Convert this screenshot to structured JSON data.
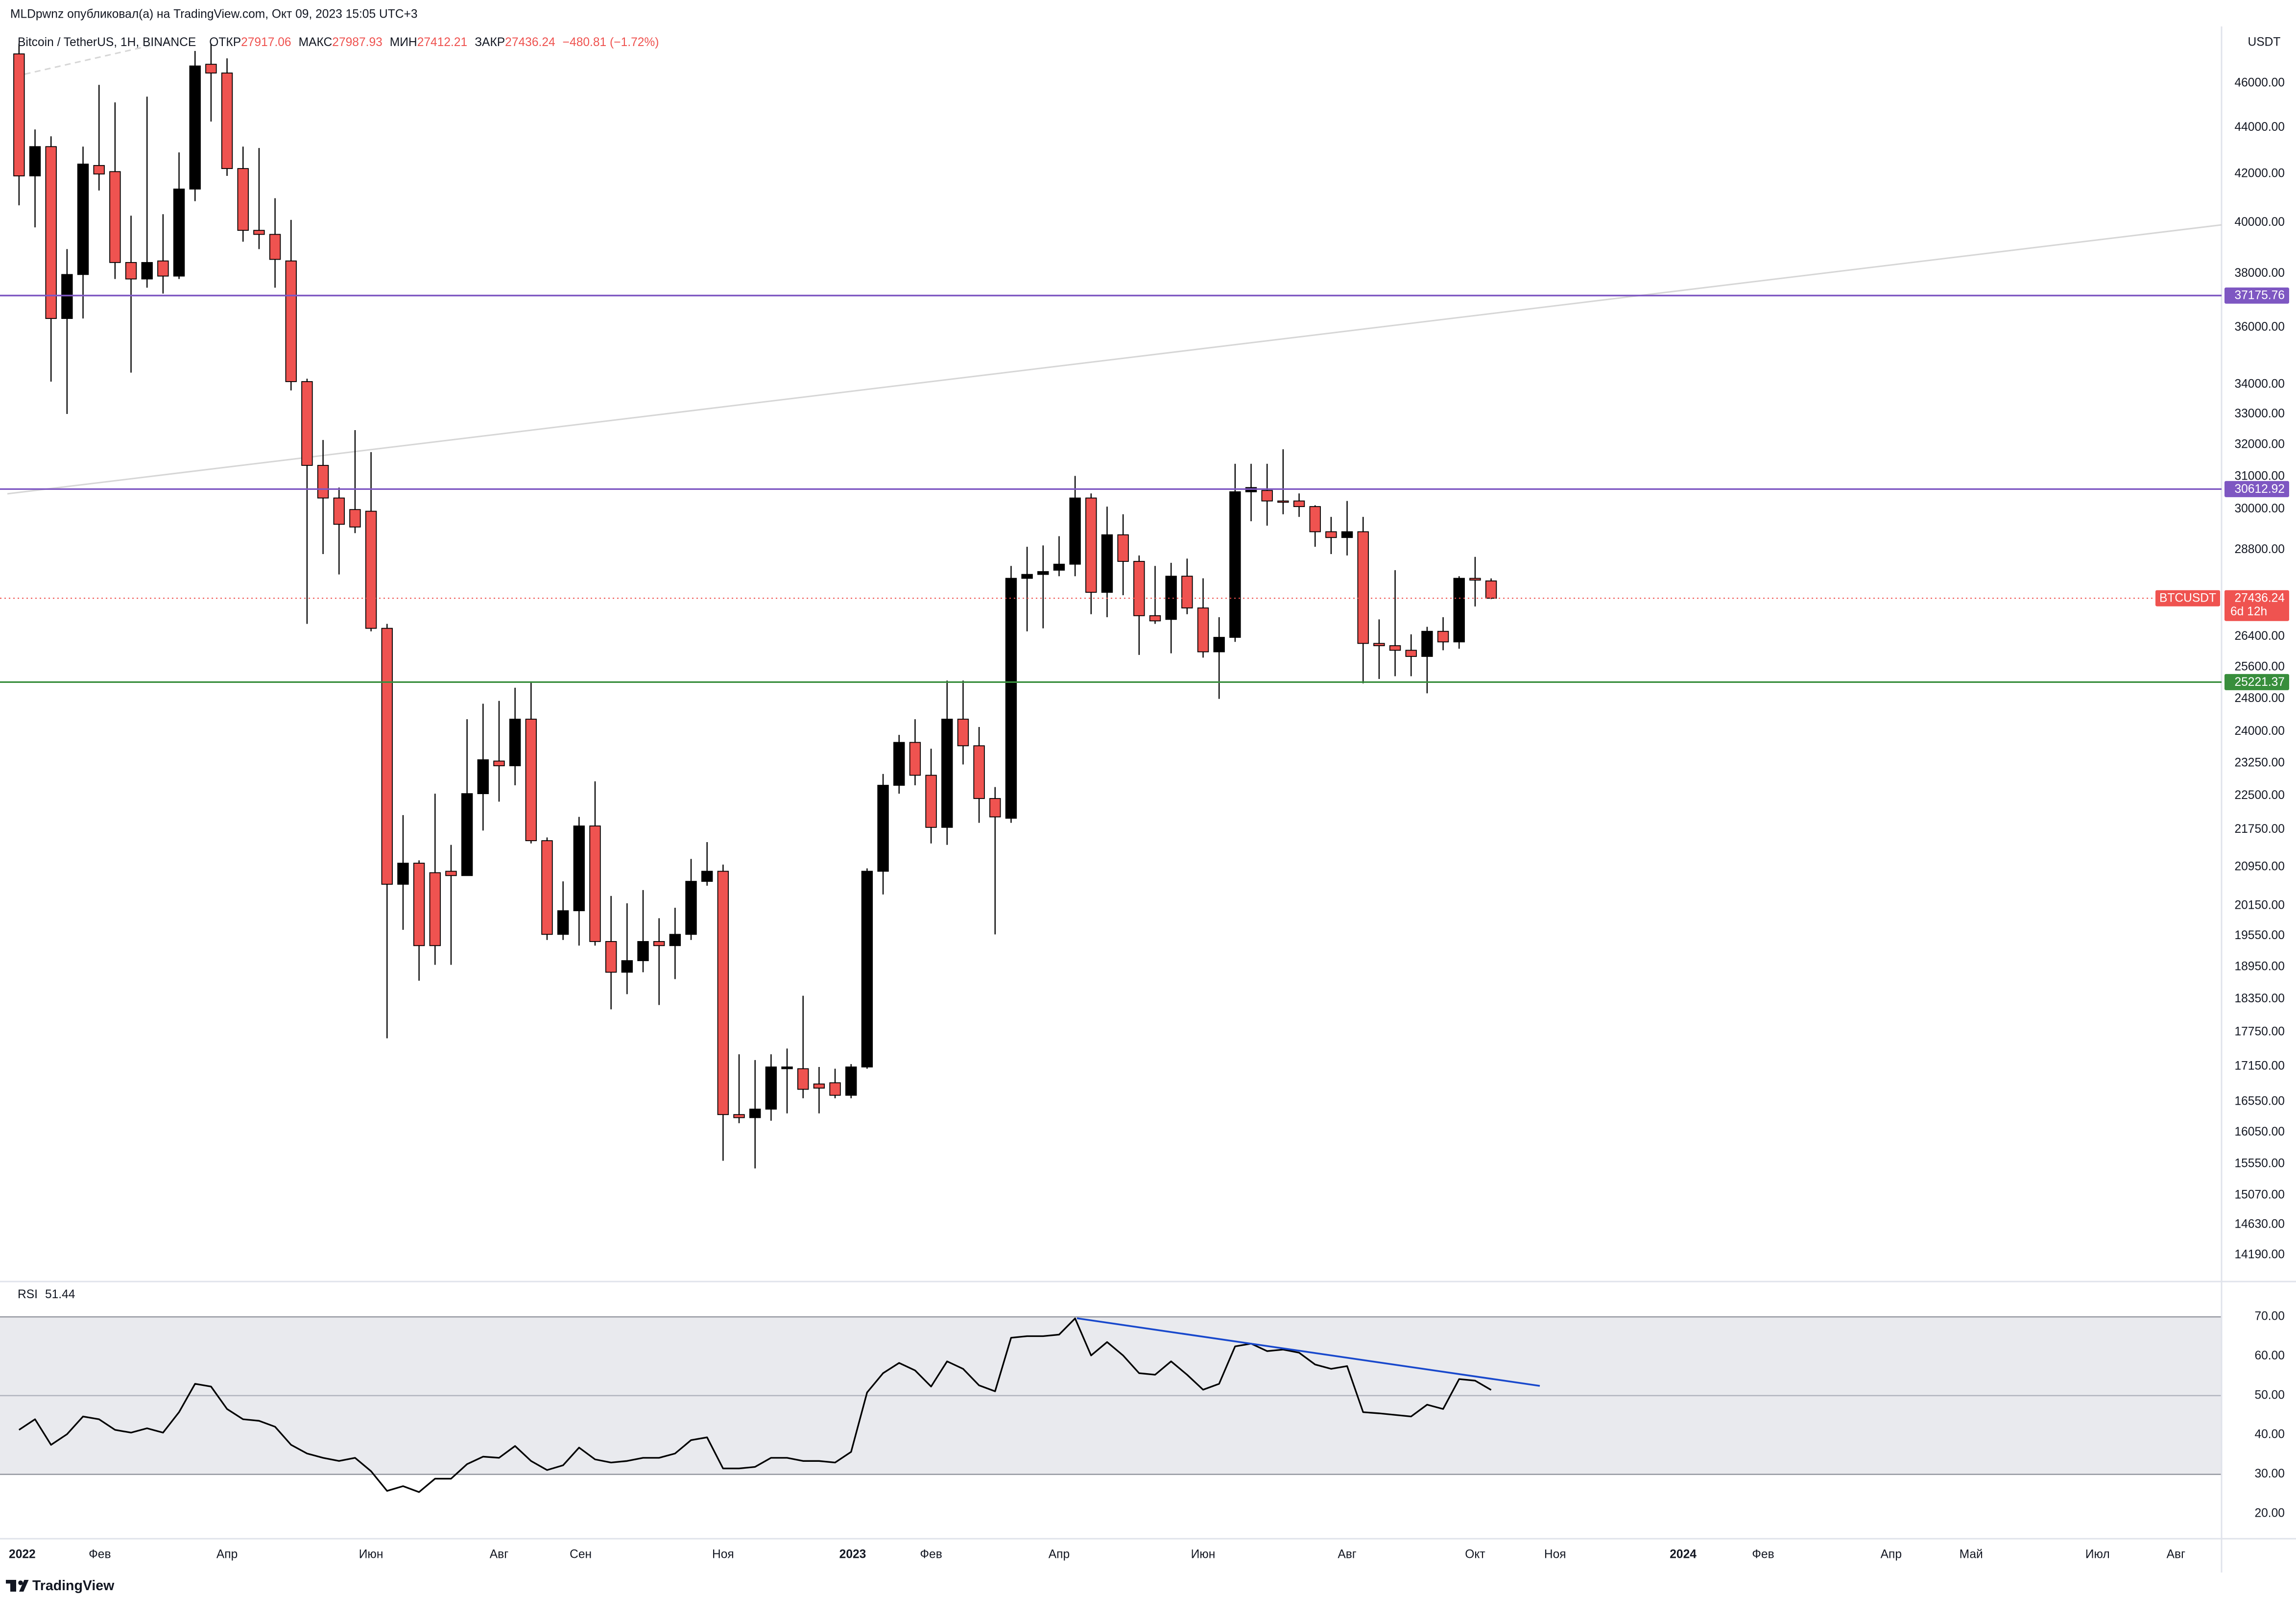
{
  "header": {
    "author_line": "MLDpwnz опубликовал(а) на TradingView.com, Окт 09, 2023 15:05 UTC+3"
  },
  "footer": {
    "brand": "TradingView"
  },
  "chart_data": [
    {
      "type": "candlestick",
      "title": "Bitcoin / TetherUS, 1H, BINANCE",
      "legend_labels": {
        "open": "ОТКР",
        "high": "МАКС",
        "low": "МИН",
        "close": "ЗАКР"
      },
      "change": "−480.81 (−1.72%)",
      "y_axis_unit": "USDT",
      "up_color": "#000000",
      "down_color": "#ef5350",
      "log_scale": true,
      "xlim": [
        -0.73,
        137.65
      ],
      "xticks": [
        {
          "value": 0.2,
          "label": "2022"
        },
        {
          "value": 5.05,
          "label": "Фев"
        },
        {
          "value": 13.0,
          "label": "Апр"
        },
        {
          "value": 22.0,
          "label": "Июн"
        },
        {
          "value": 30.0,
          "label": "Авг"
        },
        {
          "value": 35.1,
          "label": "Сен"
        },
        {
          "value": 44.0,
          "label": "Ноя"
        },
        {
          "value": 52.1,
          "label": "2023"
        },
        {
          "value": 57.0,
          "label": "Фев"
        },
        {
          "value": 65.0,
          "label": "Апр"
        },
        {
          "value": 74.0,
          "label": "Июн"
        },
        {
          "value": 83.0,
          "label": "Авг"
        },
        {
          "value": 91.0,
          "label": "Окт"
        },
        {
          "value": 96.0,
          "label": "Ноя"
        },
        {
          "value": 104.0,
          "label": "2024"
        },
        {
          "value": 109.0,
          "label": "Фев"
        },
        {
          "value": 117.0,
          "label": "Апр"
        },
        {
          "value": 122.0,
          "label": "Май"
        },
        {
          "value": 129.9,
          "label": "Июл"
        },
        {
          "value": 134.8,
          "label": "Авг"
        }
      ],
      "ylim": [
        13860,
        48560
      ],
      "yticks": [
        {
          "value": 46000,
          "label": "46000.00"
        },
        {
          "value": 44000,
          "label": "44000.00"
        },
        {
          "value": 42000,
          "label": "42000.00"
        },
        {
          "value": 40000,
          "label": "40000.00"
        },
        {
          "value": 38000,
          "label": "38000.00"
        },
        {
          "value": 36000,
          "label": "36000.00"
        },
        {
          "value": 34000,
          "label": "34000.00"
        },
        {
          "value": 33000,
          "label": "33000.00"
        },
        {
          "value": 32000,
          "label": "32000.00"
        },
        {
          "value": 31000,
          "label": "31000.00"
        },
        {
          "value": 30000,
          "label": "30000.00"
        },
        {
          "value": 28800,
          "label": "28800.00"
        },
        {
          "value": 26400,
          "label": "26400.00"
        },
        {
          "value": 25600,
          "label": "25600.00"
        },
        {
          "value": 24800,
          "label": "24800.00"
        },
        {
          "value": 24000,
          "label": "24000.00"
        },
        {
          "value": 23250,
          "label": "23250.00"
        },
        {
          "value": 22500,
          "label": "22500.00"
        },
        {
          "value": 21750,
          "label": "21750.00"
        },
        {
          "value": 20950,
          "label": "20950.00"
        },
        {
          "value": 20150,
          "label": "20150.00"
        },
        {
          "value": 19550,
          "label": "19550.00"
        },
        {
          "value": 18950,
          "label": "18950.00"
        },
        {
          "value": 18350,
          "label": "18350.00"
        },
        {
          "value": 17750,
          "label": "17750.00"
        },
        {
          "value": 17150,
          "label": "17150.00"
        },
        {
          "value": 16550,
          "label": "16550.00"
        },
        {
          "value": 16050,
          "label": "16050.00"
        },
        {
          "value": 15550,
          "label": "15550.00"
        },
        {
          "value": 15070,
          "label": "15070.00"
        },
        {
          "value": 14630,
          "label": "14630.00"
        },
        {
          "value": 14190,
          "label": "14190.00"
        }
      ],
      "open": [
        47380,
        41920,
        43170,
        36330,
        37970,
        42360,
        42100,
        38430,
        37800,
        38490,
        37910,
        41370,
        46890,
        46480,
        42230,
        39690,
        39530,
        38490,
        34100,
        31350,
        30340,
        29990,
        29940,
        26620,
        20590,
        21030,
        20830,
        20860,
        20770,
        22550,
        23300,
        23190,
        24300,
        21510,
        19580,
        20050,
        21830,
        19440,
        18850,
        19070,
        19440,
        19360,
        19580,
        20650,
        20860,
        16340,
        16290,
        16430,
        17110,
        17110,
        16850,
        16870,
        16660,
        17140,
        20860,
        22740,
        23740,
        22970,
        21800,
        24300,
        23660,
        22440,
        22000,
        27990,
        28100,
        28220,
        28390,
        30340,
        27600,
        29240,
        28470,
        26960,
        26860,
        28050,
        27170,
        26000,
        26380,
        30530,
        30570,
        30250,
        30250,
        30080,
        29330,
        29160,
        29330,
        26220,
        26160,
        26040,
        25880,
        26540,
        26260,
        27990,
        27917.06
      ],
      "high": [
        47870,
        43920,
        43620,
        38950,
        43170,
        45930,
        45130,
        40280,
        45390,
        40340,
        42920,
        47520,
        47870,
        47170,
        43170,
        43110,
        40990,
        40110,
        34200,
        32160,
        30660,
        32480,
        31770,
        26740,
        22070,
        21090,
        22550,
        21420,
        24300,
        24680,
        24750,
        25080,
        25220,
        21580,
        20650,
        22030,
        22830,
        20350,
        20200,
        20470,
        19900,
        20110,
        21120,
        21480,
        21000,
        17360,
        17260,
        17360,
        17460,
        18410,
        17140,
        17110,
        17190,
        20920,
        23000,
        23920,
        24300,
        23590,
        25260,
        25260,
        24110,
        22700,
        28340,
        28890,
        28930,
        29200,
        31020,
        30480,
        30080,
        29850,
        28640,
        28340,
        28430,
        28550,
        27990,
        26920,
        31400,
        31400,
        31400,
        31860,
        30480,
        30120,
        29770,
        30250,
        29770,
        26860,
        28220,
        26460,
        26660,
        26920,
        28050,
        28600,
        27987.93
      ],
      "low": [
        40700,
        39810,
        34100,
        33010,
        36330,
        41310,
        37800,
        34410,
        37470,
        37250,
        37800,
        40870,
        44270,
        41920,
        39240,
        38950,
        37470,
        33800,
        26740,
        28680,
        28100,
        29290,
        26540,
        17640,
        19670,
        18690,
        18990,
        18990,
        20770,
        21730,
        22370,
        22740,
        21450,
        19470,
        19470,
        19360,
        19360,
        18160,
        18440,
        18850,
        18240,
        18720,
        19470,
        20560,
        15600,
        16200,
        15480,
        16240,
        16360,
        16610,
        16360,
        16610,
        16610,
        17110,
        20380,
        22550,
        22740,
        21450,
        21420,
        23220,
        21900,
        19580,
        21900,
        26540,
        26620,
        28050,
        28050,
        27000,
        26920,
        27520,
        25920,
        26740,
        25960,
        27000,
        25850,
        24800,
        26260,
        29640,
        29510,
        29850,
        29770,
        28890,
        28680,
        28640,
        25190,
        25300,
        25370,
        25370,
        24940,
        26040,
        26080,
        27210,
        27412.21
      ],
      "close": [
        41920,
        43170,
        36330,
        37970,
        42420,
        42000,
        38430,
        37800,
        38430,
        37910,
        41370,
        46810,
        46480,
        42230,
        39690,
        39530,
        38550,
        34100,
        31350,
        30340,
        29550,
        29470,
        26620,
        20590,
        21030,
        19360,
        19360,
        20770,
        22550,
        23330,
        23190,
        24300,
        21510,
        19580,
        20050,
        21830,
        19440,
        18850,
        19070,
        19440,
        19360,
        19580,
        20650,
        20860,
        16340,
        16290,
        16430,
        17140,
        17140,
        16760,
        16780,
        16660,
        17140,
        20860,
        22740,
        23740,
        22970,
        21800,
        24300,
        23660,
        22440,
        22030,
        27990,
        28100,
        28180,
        28390,
        30340,
        27600,
        29240,
        28470,
        26960,
        26820,
        28050,
        27170,
        26000,
        26380,
        30530,
        30660,
        30250,
        30210,
        30080,
        29330,
        29160,
        29330,
        26220,
        26160,
        26040,
        25880,
        26540,
        26260,
        27990,
        27940,
        27436.24
      ],
      "levels": [
        {
          "value": 37175.76,
          "color": "#7e57c2"
        },
        {
          "value": 30612.92,
          "color": "#7e57c2"
        },
        {
          "value": 25221.37,
          "color": "#388e3c"
        }
      ],
      "last_price": {
        "symbol": "BTCUSDT",
        "countdown": "6d 12h",
        "color": "#ef5350"
      }
    },
    {
      "type": "line",
      "title": "RSI",
      "color": "#000000",
      "band": [
        30,
        70
      ],
      "midline": 50,
      "band_color": "#e9eaee",
      "ylim": [
        14.4,
        78.6
      ],
      "yticks": [
        {
          "value": 70,
          "label": "70.00"
        },
        {
          "value": 60,
          "label": "60.00"
        },
        {
          "value": 50,
          "label": "50.00"
        },
        {
          "value": 40,
          "label": "40.00"
        },
        {
          "value": 30,
          "label": "30.00"
        },
        {
          "value": 20,
          "label": "20.00"
        }
      ],
      "values": [
        41.3,
        44.0,
        37.5,
        40.2,
        44.7,
        44.0,
        41.3,
        40.6,
        41.7,
        40.6,
        45.8,
        53.0,
        52.3,
        46.6,
        44.0,
        43.6,
        42.1,
        37.5,
        35.3,
        34.2,
        33.4,
        34.2,
        30.8,
        25.8,
        27.0,
        25.5,
        28.9,
        28.9,
        32.6,
        34.5,
        34.2,
        37.2,
        33.4,
        31.1,
        32.3,
        36.8,
        33.8,
        33.0,
        33.4,
        34.2,
        34.2,
        35.3,
        38.7,
        39.4,
        31.5,
        31.5,
        31.9,
        34.2,
        34.2,
        33.4,
        33.4,
        33.0,
        35.7,
        50.8,
        55.7,
        58.3,
        56.4,
        52.3,
        58.7,
        56.8,
        52.6,
        51.1,
        64.7,
        65.1,
        65.1,
        65.5,
        69.6,
        60.2,
        63.6,
        60.2,
        55.7,
        55.3,
        58.7,
        55.3,
        51.5,
        53.0,
        62.5,
        63.2,
        61.3,
        61.7,
        60.9,
        57.9,
        56.8,
        57.5,
        45.8,
        45.5,
        45.1,
        44.7,
        47.7,
        46.6,
        54.2,
        53.8,
        51.44
      ]
    }
  ]
}
